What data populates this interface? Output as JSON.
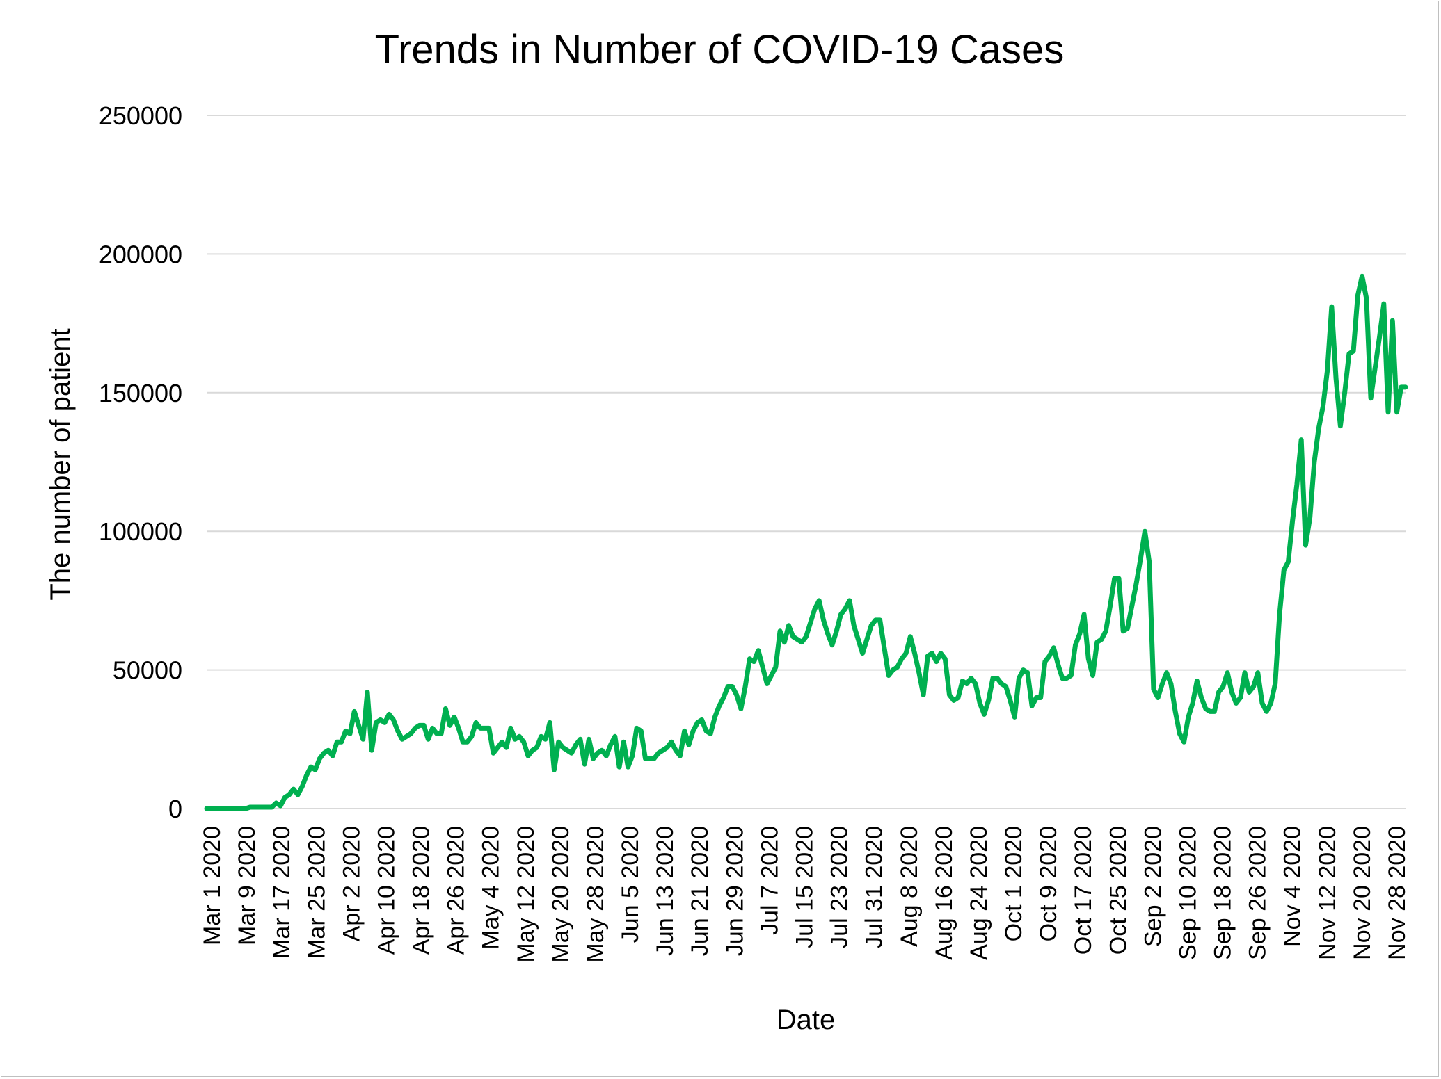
{
  "chart_data": {
    "type": "line",
    "title": "Trends in Number of COVID-19 Cases",
    "xlabel": "Date",
    "ylabel": "The number of patient",
    "ylim": [
      0,
      250000
    ],
    "yticks": [
      0,
      50000,
      100000,
      150000,
      200000,
      250000
    ],
    "ytick_labels": [
      "0",
      "50000",
      "100000",
      "150000",
      "200000",
      "250000"
    ],
    "grid": "horizontal",
    "legend": "none",
    "colors": {
      "line": "#00b050",
      "grid": "#d9d9d9",
      "border": "#bfbfbf"
    },
    "xtick_labels": [
      "Mar 1 2020",
      "Mar 9 2020",
      "Mar 17 2020",
      "Mar 25 2020",
      "Apr 2 2020",
      "Apr 10 2020",
      "Apr 18 2020",
      "Apr 26 2020",
      "May 4 2020",
      "May 12 2020",
      "May 20 2020",
      "May 28 2020",
      "Jun 5 2020",
      "Jun 13 2020",
      "Jun 21 2020",
      "Jun 29 2020",
      "Jul 7 2020",
      "Jul 15 2020",
      "Jul 23 2020",
      "Jul 31 2020",
      "Aug 8 2020",
      "Aug 16 2020",
      "Aug 24 2020",
      "Oct 1 2020",
      "Oct 9 2020",
      "Oct 17 2020",
      "Oct 25 2020",
      "Sep 2 2020",
      "Sep 10 2020",
      "Sep 18 2020",
      "Sep 26 2020",
      "Nov 4 2020",
      "Nov 12 2020",
      "Nov 20 2020",
      "Nov 28 2020"
    ],
    "series": [
      {
        "values": [
          0,
          0,
          0,
          0,
          0,
          0,
          0,
          0,
          0,
          0,
          500,
          500,
          500,
          500,
          500,
          500,
          2000,
          1000,
          4000,
          5000,
          7000,
          5000,
          8000,
          12000,
          15000,
          14000,
          18000,
          20000,
          21000,
          19000,
          24000,
          24000,
          28000,
          27000,
          35000,
          30000,
          25000,
          42000,
          21000,
          31000,
          32000,
          31000,
          34000,
          32000,
          28000,
          25000,
          26000,
          27000,
          29000,
          30000,
          30000,
          25000,
          29000,
          27000,
          27000,
          36000,
          30000,
          33000,
          29000,
          24000,
          24000,
          26000,
          31000,
          29000,
          29000,
          29000,
          20000,
          22000,
          24000,
          22000,
          29000,
          25000,
          26000,
          24000,
          19000,
          21000,
          22000,
          26000,
          25000,
          31000,
          14000,
          24000,
          22000,
          21000,
          20000,
          23000,
          25000,
          16000,
          25000,
          18000,
          20000,
          21000,
          19000,
          23000,
          26000,
          15000,
          24000,
          15000,
          19000,
          29000,
          28000,
          18000,
          18000,
          18000,
          20000,
          21000,
          22000,
          24000,
          21000,
          19000,
          28000,
          23000,
          28000,
          31000,
          32000,
          28000,
          27000,
          33000,
          37000,
          40000,
          44000,
          44000,
          41000,
          36000,
          44000,
          54000,
          53000,
          57000,
          51000,
          45000,
          48000,
          51000,
          64000,
          60000,
          66000,
          62000,
          61000,
          60000,
          62000,
          67000,
          72000,
          75000,
          68000,
          63000,
          59000,
          64000,
          70000,
          72000,
          75000,
          66000,
          61000,
          56000,
          61000,
          66000,
          68000,
          68000,
          58000,
          48000,
          50000,
          51000,
          54000,
          56000,
          62000,
          56000,
          49000,
          41000,
          55000,
          56000,
          53000,
          56000,
          54000,
          41000,
          39000,
          40000,
          46000,
          45000,
          47000,
          45000,
          38000,
          34000,
          39000,
          47000,
          47000,
          45000,
          44000,
          39000,
          33000,
          47000,
          50000,
          49000,
          37000,
          40000,
          40000,
          53000,
          55000,
          58000,
          52000,
          47000,
          47000,
          48000,
          59000,
          63000,
          70000,
          54000,
          48000,
          60000,
          61000,
          64000,
          73000,
          83000,
          83000,
          64000,
          65000,
          73000,
          81000,
          90000,
          100000,
          89000,
          43000,
          40000,
          45000,
          49000,
          45000,
          35000,
          27000,
          24000,
          33000,
          38000,
          46000,
          40000,
          36000,
          35000,
          35000,
          42000,
          44000,
          49000,
          42000,
          38000,
          40000,
          49000,
          42000,
          44000,
          49000,
          38000,
          35000,
          38000,
          45000,
          70000,
          86000,
          89000,
          104000,
          117000,
          133000,
          95000,
          105000,
          125000,
          137000,
          145000,
          158000,
          181000,
          155000,
          138000,
          150000,
          164000,
          165000,
          185000,
          192000,
          184000,
          148000,
          159000,
          170000,
          182000,
          143000,
          176000,
          143000,
          152000,
          152000
        ]
      }
    ]
  }
}
